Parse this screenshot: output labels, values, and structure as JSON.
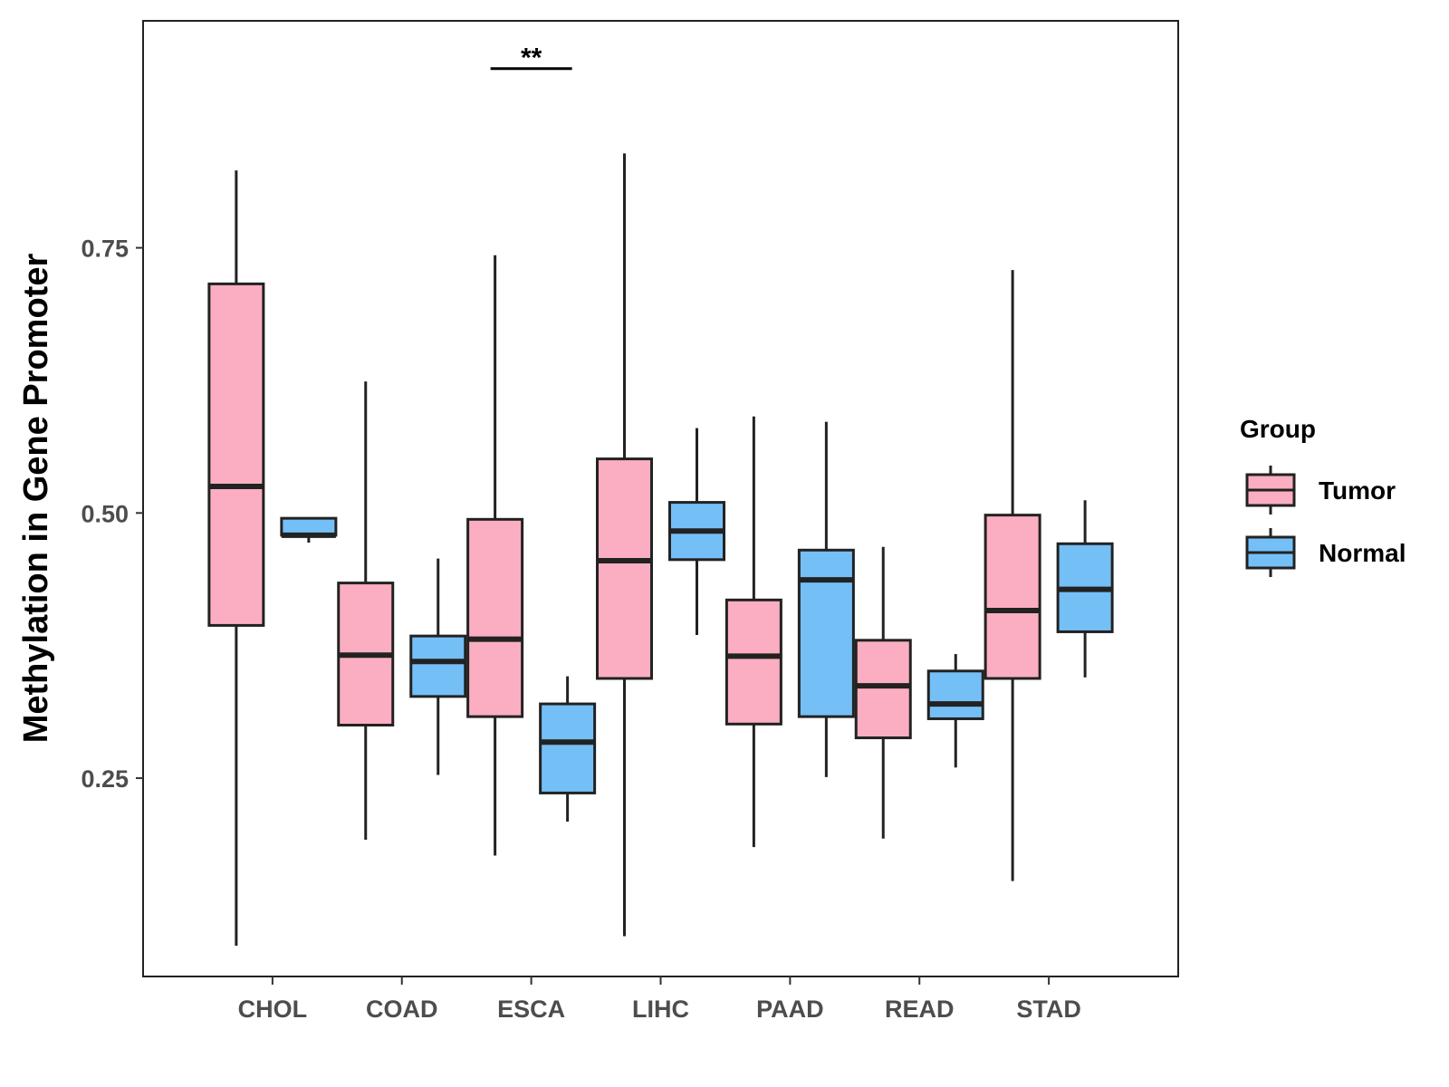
{
  "chart_data": {
    "type": "boxplot",
    "title": "",
    "xlabel": "",
    "ylabel": "Methylation in Gene Promoter",
    "ylim": [
      0.063,
      0.964
    ],
    "yticks": [
      0.25,
      0.5,
      0.75
    ],
    "ytick_labels": [
      "0.25",
      "0.50",
      "0.75"
    ],
    "categories": [
      "CHOL",
      "COAD",
      "ESCA",
      "LIHC",
      "PAAD",
      "READ",
      "STAD"
    ],
    "legend": {
      "title": "Group",
      "placement": "right",
      "entries": [
        {
          "name": "Tumor",
          "color": "#FBAEC1"
        },
        {
          "name": "Normal",
          "color": "#75BFF7"
        }
      ]
    },
    "series": [
      {
        "name": "Tumor",
        "color": "#FBAEC1",
        "boxes": [
          {
            "category": "CHOL",
            "min": 0.092,
            "q1": 0.394,
            "median": 0.525,
            "q3": 0.716,
            "max": 0.823
          },
          {
            "category": "COAD",
            "min": 0.192,
            "q1": 0.3,
            "median": 0.366,
            "q3": 0.434,
            "max": 0.624
          },
          {
            "category": "ESCA",
            "min": 0.177,
            "q1": 0.308,
            "median": 0.381,
            "q3": 0.494,
            "max": 0.743
          },
          {
            "category": "LIHC",
            "min": 0.101,
            "q1": 0.344,
            "median": 0.455,
            "q3": 0.551,
            "max": 0.839
          },
          {
            "category": "PAAD",
            "min": 0.185,
            "q1": 0.301,
            "median": 0.365,
            "q3": 0.418,
            "max": 0.591
          },
          {
            "category": "READ",
            "min": 0.193,
            "q1": 0.288,
            "median": 0.337,
            "q3": 0.38,
            "max": 0.468
          },
          {
            "category": "STAD",
            "min": 0.153,
            "q1": 0.344,
            "median": 0.408,
            "q3": 0.498,
            "max": 0.729
          }
        ]
      },
      {
        "name": "Normal",
        "color": "#75BFF7",
        "boxes": [
          {
            "category": "CHOL",
            "min": 0.472,
            "q1": 0.479,
            "median": 0.479,
            "q3": 0.495,
            "max": 0.495
          },
          {
            "category": "COAD",
            "min": 0.253,
            "q1": 0.327,
            "median": 0.36,
            "q3": 0.384,
            "max": 0.457
          },
          {
            "category": "ESCA",
            "min": 0.209,
            "q1": 0.236,
            "median": 0.284,
            "q3": 0.32,
            "max": 0.346
          },
          {
            "category": "LIHC",
            "min": 0.385,
            "q1": 0.456,
            "median": 0.483,
            "q3": 0.51,
            "max": 0.58
          },
          {
            "category": "PAAD",
            "min": 0.251,
            "q1": 0.308,
            "median": 0.437,
            "q3": 0.465,
            "max": 0.586
          },
          {
            "category": "READ",
            "min": 0.26,
            "q1": 0.306,
            "median": 0.32,
            "q3": 0.351,
            "max": 0.367
          },
          {
            "category": "STAD",
            "min": 0.345,
            "q1": 0.388,
            "median": 0.428,
            "q3": 0.471,
            "max": 0.512
          }
        ]
      }
    ],
    "annotations": [
      {
        "category": "ESCA",
        "label": "**",
        "y": 0.919
      }
    ]
  }
}
